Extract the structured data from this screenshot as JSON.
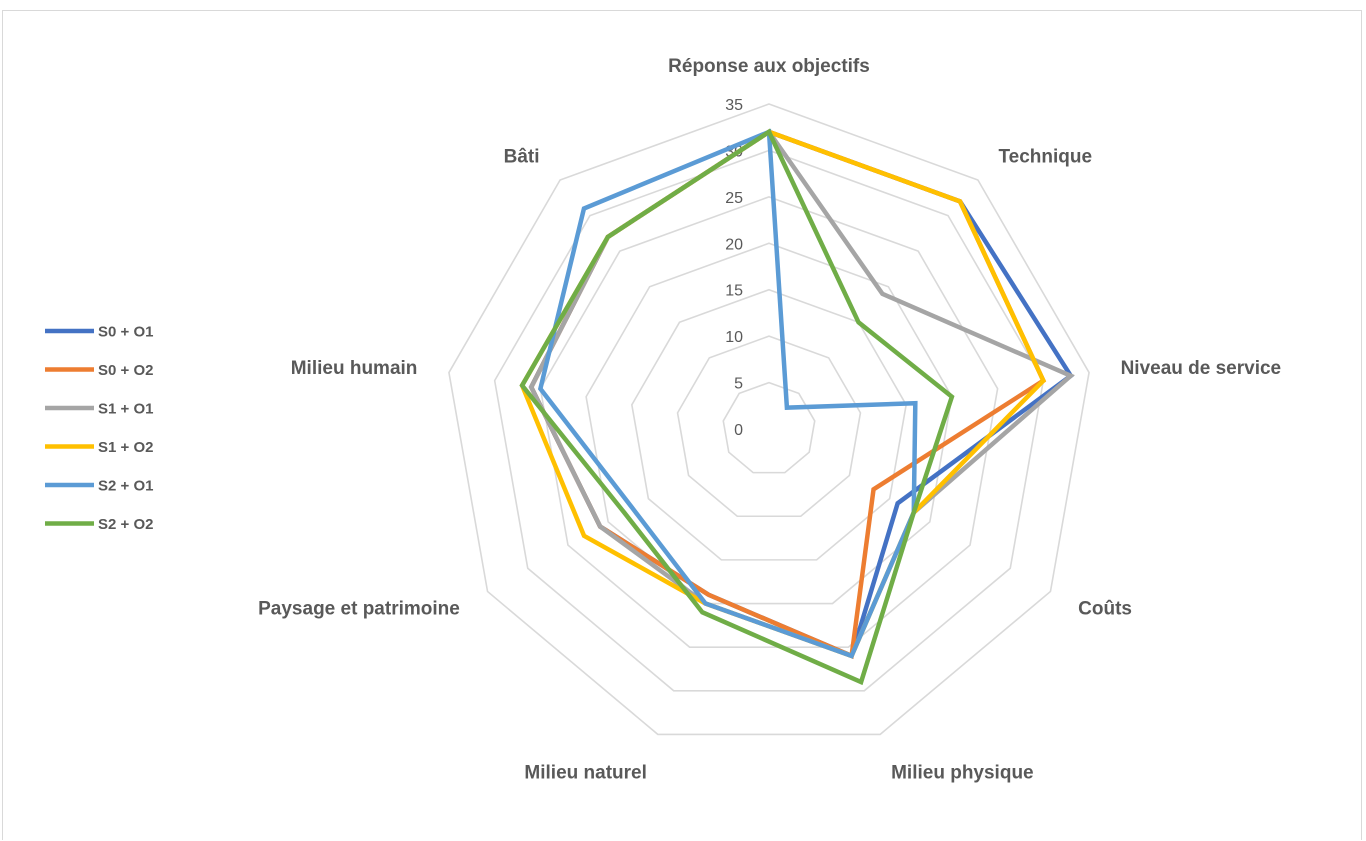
{
  "chart_data": {
    "type": "radar",
    "categories": [
      "Réponse aux objectifs",
      "Technique",
      "Niveau de service",
      "Coûts",
      "Milieu physique",
      "Milieu naturel",
      "Paysage et patrimoine",
      "Milieu humain",
      "Bâti"
    ],
    "radial_ticks": [
      "0",
      "5",
      "10",
      "15",
      "20",
      "25",
      "30",
      "35"
    ],
    "rmax": 35,
    "grid": true,
    "legend_position": "left",
    "series": [
      {
        "name": "S0 + O1",
        "color": "#4472C4",
        "values": [
          32,
          32,
          33,
          16,
          26,
          19,
          21,
          26,
          27
        ]
      },
      {
        "name": "S0 + O2",
        "color": "#ED7D31",
        "values": [
          32,
          32,
          30,
          13,
          26,
          19,
          21,
          26,
          27
        ]
      },
      {
        "name": "S1 + O1",
        "color": "#A5A5A5",
        "values": [
          32,
          19,
          33,
          18,
          26,
          20,
          21,
          26,
          27
        ]
      },
      {
        "name": "S1 + O2",
        "color": "#FFC000",
        "values": [
          32,
          32,
          30,
          18,
          26,
          20,
          23,
          27,
          27
        ]
      },
      {
        "name": "S2 + O1",
        "color": "#5B9BD5",
        "values": [
          32,
          3,
          16,
          18,
          26,
          20,
          17,
          25,
          31
        ]
      },
      {
        "name": "S2 + O2",
        "color": "#70AD47",
        "values": [
          32,
          15,
          20,
          18,
          29,
          21,
          18,
          27,
          27
        ]
      }
    ]
  }
}
